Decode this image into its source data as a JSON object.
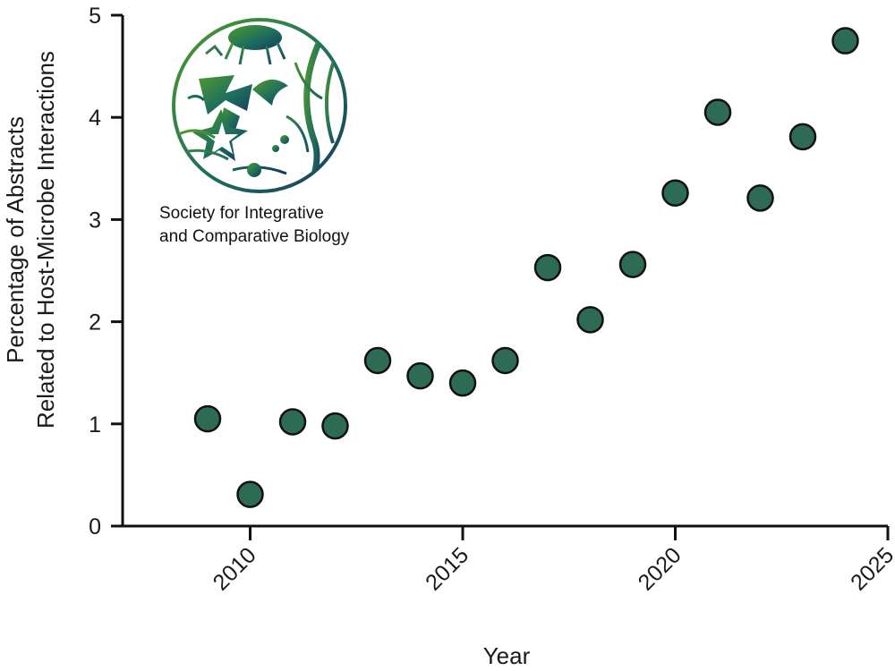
{
  "chart_data": {
    "type": "scatter",
    "x": [
      2009,
      2010,
      2011,
      2012,
      2013,
      2014,
      2015,
      2016,
      2017,
      2018,
      2019,
      2020,
      2021,
      2022,
      2023,
      2024
    ],
    "y": [
      1.05,
      0.31,
      1.02,
      0.98,
      1.62,
      1.47,
      1.4,
      1.62,
      2.53,
      2.02,
      2.56,
      3.26,
      4.05,
      3.21,
      3.81,
      4.75
    ],
    "xlabel": "Year",
    "ylabel_line1": "Percentage of Abstracts",
    "ylabel_line2": "Related to Host-Microbe Interactions",
    "xlim": [
      2007,
      2025
    ],
    "ylim": [
      0,
      5
    ],
    "xticks": [
      "2010",
      "2015",
      "2020",
      "2025"
    ],
    "yticks": [
      "0",
      "1",
      "2",
      "3",
      "4",
      "5"
    ],
    "grid": false,
    "marker_color": "#2e6b55"
  },
  "logo": {
    "line1": "Society for Integrative",
    "line2": "and Comparative Biology"
  }
}
